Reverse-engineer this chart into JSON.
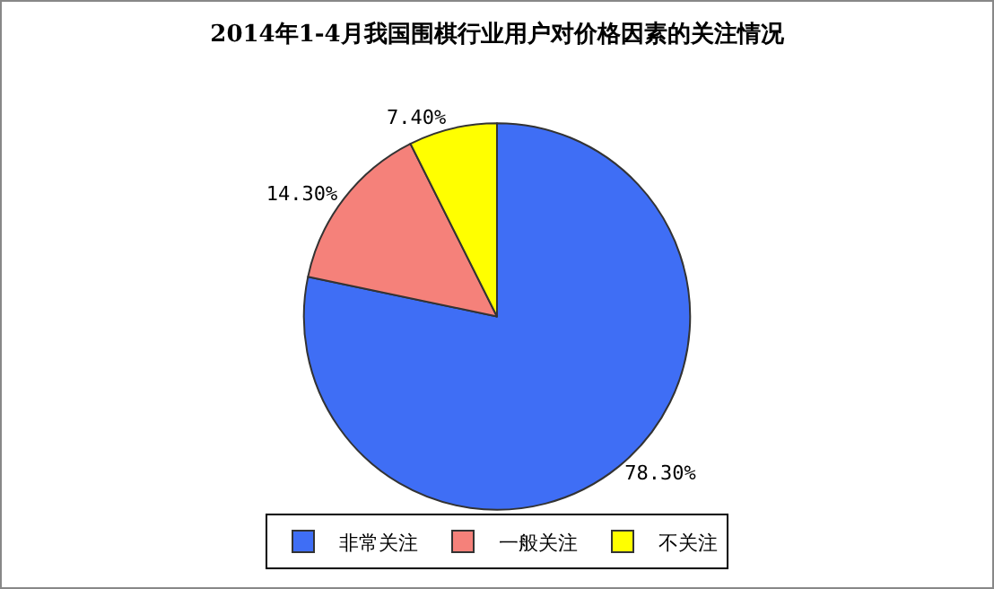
{
  "chart_data": {
    "type": "pie",
    "title": "2014年1-4月我国围棋行业用户对价格因素的关注情况",
    "categories": [
      "非常关注",
      "一般关注",
      "不关注"
    ],
    "values": [
      78.3,
      14.3,
      7.4
    ],
    "value_labels": [
      "78.30%",
      "14.30%",
      "7.40%"
    ],
    "colors": [
      "#3f6ef5",
      "#f5817a",
      "#ffff00"
    ],
    "legend": "bottom"
  }
}
